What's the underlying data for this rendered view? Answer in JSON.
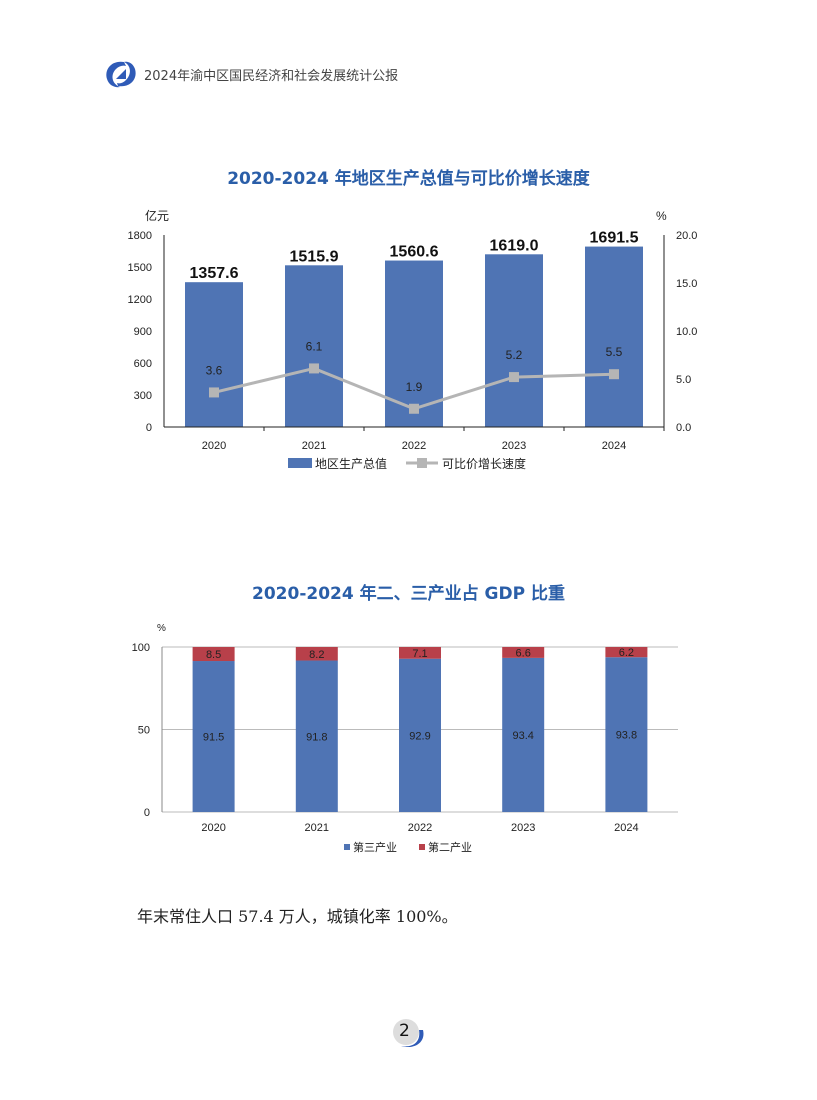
{
  "header": {
    "title": "2024年渝中区国民经济和社会发展统计公报"
  },
  "chart_data": [
    {
      "type": "bar",
      "title": "2020-2024 年地区生产总值与可比价增长速度",
      "categories": [
        "2020",
        "2021",
        "2022",
        "2023",
        "2024"
      ],
      "ylabel": "亿元",
      "y2label": "%",
      "ylim": [
        0,
        1800
      ],
      "y2lim": [
        0,
        20
      ],
      "yticks": [
        "0",
        "300",
        "600",
        "900",
        "1200",
        "1500",
        "1800"
      ],
      "y2ticks": [
        "0.0",
        "5.0",
        "10.0",
        "15.0",
        "20.0"
      ],
      "series": [
        {
          "name": "地区生产总值",
          "type": "bar",
          "color": "#4f74b4",
          "values": [
            1357.6,
            1515.9,
            1560.6,
            1619.0,
            1691.5
          ],
          "labels": [
            "1357.6",
            "1515.9",
            "1560.6",
            "1619.0",
            "1691.5"
          ]
        },
        {
          "name": "可比价增长速度",
          "type": "line",
          "axis": "right",
          "color": "#b5b5b5",
          "values": [
            3.6,
            6.1,
            1.9,
            5.2,
            5.5
          ],
          "labels": [
            "3.6",
            "6.1",
            "1.9",
            "5.2",
            "5.5"
          ]
        }
      ],
      "legend": "bottom"
    },
    {
      "type": "bar",
      "stacked": true,
      "title": "2020-2024 年二、三产业占 GDP 比重",
      "categories": [
        "2020",
        "2021",
        "2022",
        "2023",
        "2024"
      ],
      "ylabel": "%",
      "ylim": [
        0,
        100
      ],
      "yticks": [
        "0",
        "50",
        "100"
      ],
      "grid": true,
      "series": [
        {
          "name": "第三产业",
          "color": "#4f74b4",
          "values": [
            91.5,
            91.8,
            92.9,
            93.4,
            93.8
          ],
          "labels": [
            "91.5",
            "91.8",
            "92.9",
            "93.4",
            "93.8"
          ]
        },
        {
          "name": "第二产业",
          "color": "#b8404a",
          "values": [
            8.5,
            8.2,
            7.1,
            6.6,
            6.2
          ],
          "labels": [
            "8.5",
            "8.2",
            "7.1",
            "6.6",
            "6.2"
          ]
        }
      ],
      "legend": "bottom"
    }
  ],
  "body": {
    "text": "年末常住人口 57.4 万人，城镇化率 100%。"
  },
  "footer": {
    "page": "2"
  }
}
